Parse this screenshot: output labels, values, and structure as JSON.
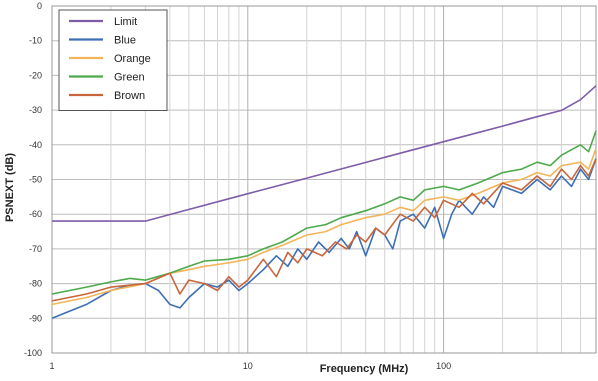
{
  "chart_data": {
    "type": "line",
    "title": "",
    "xlabel": "Frequency (MHz)",
    "ylabel": "PSNEXT (dB)",
    "x_scale": "log",
    "xlim": [
      1,
      600
    ],
    "ylim": [
      -100,
      0
    ],
    "grid": true,
    "legend_position": "top-left",
    "x_tick_labels": [
      "1",
      "10",
      "100"
    ],
    "y_tick_labels": [
      "0",
      "-10",
      "-20",
      "-30",
      "-40",
      "-50",
      "-60",
      "-70",
      "-80",
      "-90",
      "-100"
    ],
    "series": [
      {
        "name": "Limit",
        "color": "#7e5ca8",
        "points": [
          [
            1,
            -62
          ],
          [
            2,
            -62
          ],
          [
            3,
            -62
          ],
          [
            4,
            -60.1
          ],
          [
            10,
            -54.1
          ],
          [
            20,
            -49.6
          ],
          [
            50,
            -43.6
          ],
          [
            100,
            -39.1
          ],
          [
            200,
            -34.6
          ],
          [
            300,
            -31.9
          ],
          [
            400,
            -30.1
          ],
          [
            500,
            -27
          ],
          [
            600,
            -23
          ]
        ]
      },
      {
        "name": "Blue",
        "color": "#3d6fb6",
        "points": [
          [
            1,
            -90
          ],
          [
            1.5,
            -86
          ],
          [
            2,
            -82
          ],
          [
            2.5,
            -80.5
          ],
          [
            3,
            -80
          ],
          [
            3.5,
            -82
          ],
          [
            4,
            -86
          ],
          [
            4.5,
            -87
          ],
          [
            5,
            -84
          ],
          [
            6,
            -80
          ],
          [
            7,
            -81
          ],
          [
            8,
            -79
          ],
          [
            9,
            -82
          ],
          [
            10,
            -80
          ],
          [
            12,
            -76
          ],
          [
            14,
            -72
          ],
          [
            16,
            -75
          ],
          [
            18,
            -70
          ],
          [
            20,
            -73
          ],
          [
            23,
            -68
          ],
          [
            26,
            -71
          ],
          [
            30,
            -67
          ],
          [
            33,
            -70
          ],
          [
            36,
            -65
          ],
          [
            40,
            -72
          ],
          [
            45,
            -64
          ],
          [
            50,
            -66
          ],
          [
            55,
            -70
          ],
          [
            60,
            -62
          ],
          [
            70,
            -60
          ],
          [
            80,
            -64
          ],
          [
            90,
            -58
          ],
          [
            100,
            -67
          ],
          [
            110,
            -60
          ],
          [
            120,
            -56
          ],
          [
            140,
            -60
          ],
          [
            160,
            -55
          ],
          [
            180,
            -58
          ],
          [
            200,
            -52
          ],
          [
            250,
            -54
          ],
          [
            300,
            -50
          ],
          [
            350,
            -53
          ],
          [
            400,
            -49
          ],
          [
            450,
            -52
          ],
          [
            500,
            -47
          ],
          [
            550,
            -50
          ],
          [
            600,
            -44
          ]
        ]
      },
      {
        "name": "Orange",
        "color": "#f2b55a",
        "points": [
          [
            1,
            -86
          ],
          [
            1.5,
            -84
          ],
          [
            2,
            -82
          ],
          [
            3,
            -80
          ],
          [
            4,
            -77
          ],
          [
            5,
            -76
          ],
          [
            6,
            -75
          ],
          [
            7,
            -74.5
          ],
          [
            8,
            -74
          ],
          [
            10,
            -73
          ],
          [
            12,
            -71
          ],
          [
            15,
            -69
          ],
          [
            20,
            -66
          ],
          [
            25,
            -65
          ],
          [
            30,
            -63
          ],
          [
            40,
            -61
          ],
          [
            50,
            -60
          ],
          [
            60,
            -58
          ],
          [
            70,
            -59
          ],
          [
            80,
            -56
          ],
          [
            100,
            -55
          ],
          [
            120,
            -56
          ],
          [
            150,
            -54
          ],
          [
            200,
            -51
          ],
          [
            250,
            -50
          ],
          [
            300,
            -48
          ],
          [
            350,
            -49
          ],
          [
            400,
            -46
          ],
          [
            500,
            -45
          ],
          [
            550,
            -47
          ],
          [
            600,
            -41
          ]
        ]
      },
      {
        "name": "Green",
        "color": "#4daa4a",
        "points": [
          [
            1,
            -83
          ],
          [
            1.5,
            -81
          ],
          [
            2,
            -79.5
          ],
          [
            2.5,
            -78.5
          ],
          [
            3,
            -79
          ],
          [
            4,
            -77
          ],
          [
            5,
            -75
          ],
          [
            6,
            -73.5
          ],
          [
            8,
            -73
          ],
          [
            10,
            -72
          ],
          [
            12,
            -70
          ],
          [
            15,
            -68
          ],
          [
            20,
            -64
          ],
          [
            25,
            -63
          ],
          [
            30,
            -61
          ],
          [
            40,
            -59
          ],
          [
            50,
            -57
          ],
          [
            60,
            -55
          ],
          [
            70,
            -56
          ],
          [
            80,
            -53
          ],
          [
            100,
            -52
          ],
          [
            120,
            -53
          ],
          [
            150,
            -51
          ],
          [
            200,
            -48
          ],
          [
            250,
            -47
          ],
          [
            300,
            -45
          ],
          [
            350,
            -46
          ],
          [
            400,
            -43
          ],
          [
            500,
            -40
          ],
          [
            550,
            -42
          ],
          [
            600,
            -36
          ]
        ]
      },
      {
        "name": "Brown",
        "color": "#c8653a",
        "points": [
          [
            1,
            -85
          ],
          [
            1.5,
            -83
          ],
          [
            2,
            -81
          ],
          [
            3,
            -80
          ],
          [
            4,
            -77
          ],
          [
            4.5,
            -83
          ],
          [
            5,
            -79
          ],
          [
            6,
            -80
          ],
          [
            7,
            -82
          ],
          [
            8,
            -78
          ],
          [
            9,
            -81
          ],
          [
            10,
            -79
          ],
          [
            12,
            -73
          ],
          [
            14,
            -78
          ],
          [
            16,
            -71
          ],
          [
            18,
            -74
          ],
          [
            20,
            -70
          ],
          [
            24,
            -72
          ],
          [
            28,
            -68
          ],
          [
            32,
            -70
          ],
          [
            36,
            -66
          ],
          [
            40,
            -68
          ],
          [
            45,
            -64
          ],
          [
            50,
            -66
          ],
          [
            60,
            -60
          ],
          [
            70,
            -62
          ],
          [
            80,
            -58
          ],
          [
            90,
            -61
          ],
          [
            100,
            -56
          ],
          [
            120,
            -58
          ],
          [
            140,
            -54
          ],
          [
            160,
            -57
          ],
          [
            200,
            -51
          ],
          [
            250,
            -53
          ],
          [
            300,
            -49
          ],
          [
            350,
            -52
          ],
          [
            400,
            -47
          ],
          [
            450,
            -50
          ],
          [
            500,
            -46
          ],
          [
            550,
            -49
          ],
          [
            600,
            -44
          ]
        ]
      }
    ]
  }
}
